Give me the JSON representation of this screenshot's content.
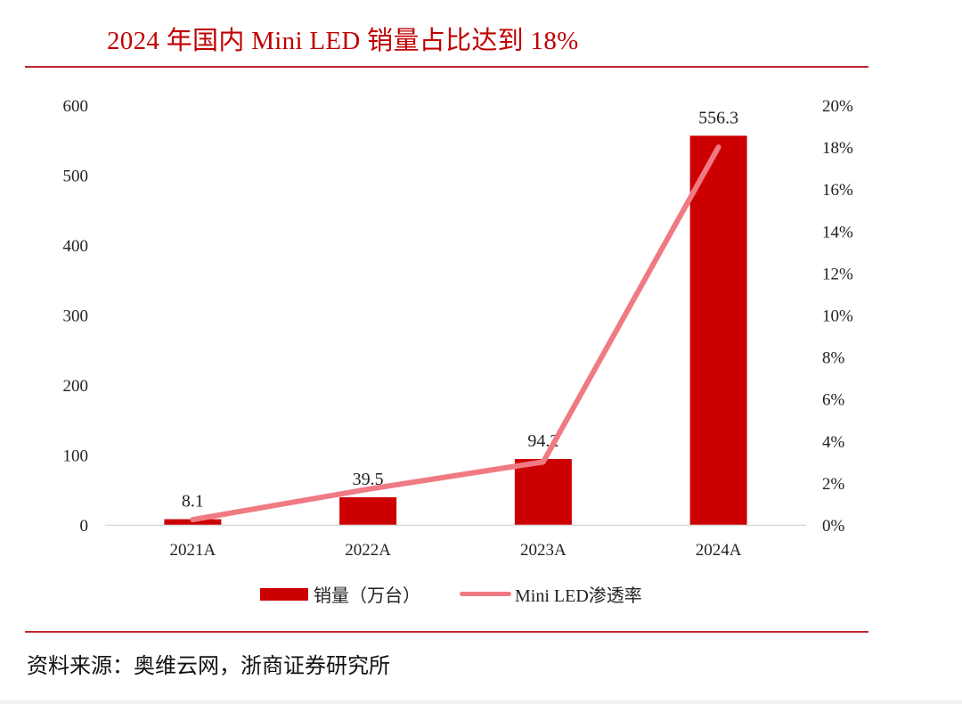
{
  "header": {
    "title": "2024 年国内 Mini LED 销量占比达到 18%"
  },
  "footer": {
    "source": "资料来源：奥维云网，浙商证券研究所"
  },
  "colors": {
    "bar": "#cc0000",
    "line": "#f07a83",
    "title": "#c00000",
    "rule": "#c0272d",
    "axis": "#d9d9d9"
  },
  "chart_data": {
    "type": "bar",
    "title": "2024 年国内 Mini LED 销量占比达到 18%",
    "categories": [
      "2021A",
      "2022A",
      "2023A",
      "2024A"
    ],
    "series": [
      {
        "name": "销量（万台）",
        "type": "bar",
        "axis": "left",
        "values": [
          8.1,
          39.5,
          94.2,
          556.3
        ],
        "labels": [
          "8.1",
          "39.5",
          "94.2",
          "556.3"
        ]
      },
      {
        "name": "Mini LED渗透率",
        "type": "line",
        "axis": "right",
        "values": [
          0.25,
          1.7,
          3.0,
          18.0
        ]
      }
    ],
    "y_left": {
      "lim": [
        0,
        600
      ],
      "ticks": [
        "0",
        "100",
        "200",
        "300",
        "400",
        "500",
        "600"
      ],
      "tick_values": [
        0,
        100,
        200,
        300,
        400,
        500,
        600
      ]
    },
    "y_right": {
      "lim": [
        0,
        20
      ],
      "ticks": [
        "0%",
        "2%",
        "4%",
        "6%",
        "8%",
        "10%",
        "12%",
        "14%",
        "16%",
        "18%",
        "20%"
      ],
      "tick_values": [
        0,
        2,
        4,
        6,
        8,
        10,
        12,
        14,
        16,
        18,
        20
      ]
    },
    "xlabel": "",
    "ylabel": "",
    "grid": false,
    "legend": {
      "position": "bottom",
      "entries": [
        "销量（万台）",
        "Mini LED渗透率"
      ]
    }
  }
}
